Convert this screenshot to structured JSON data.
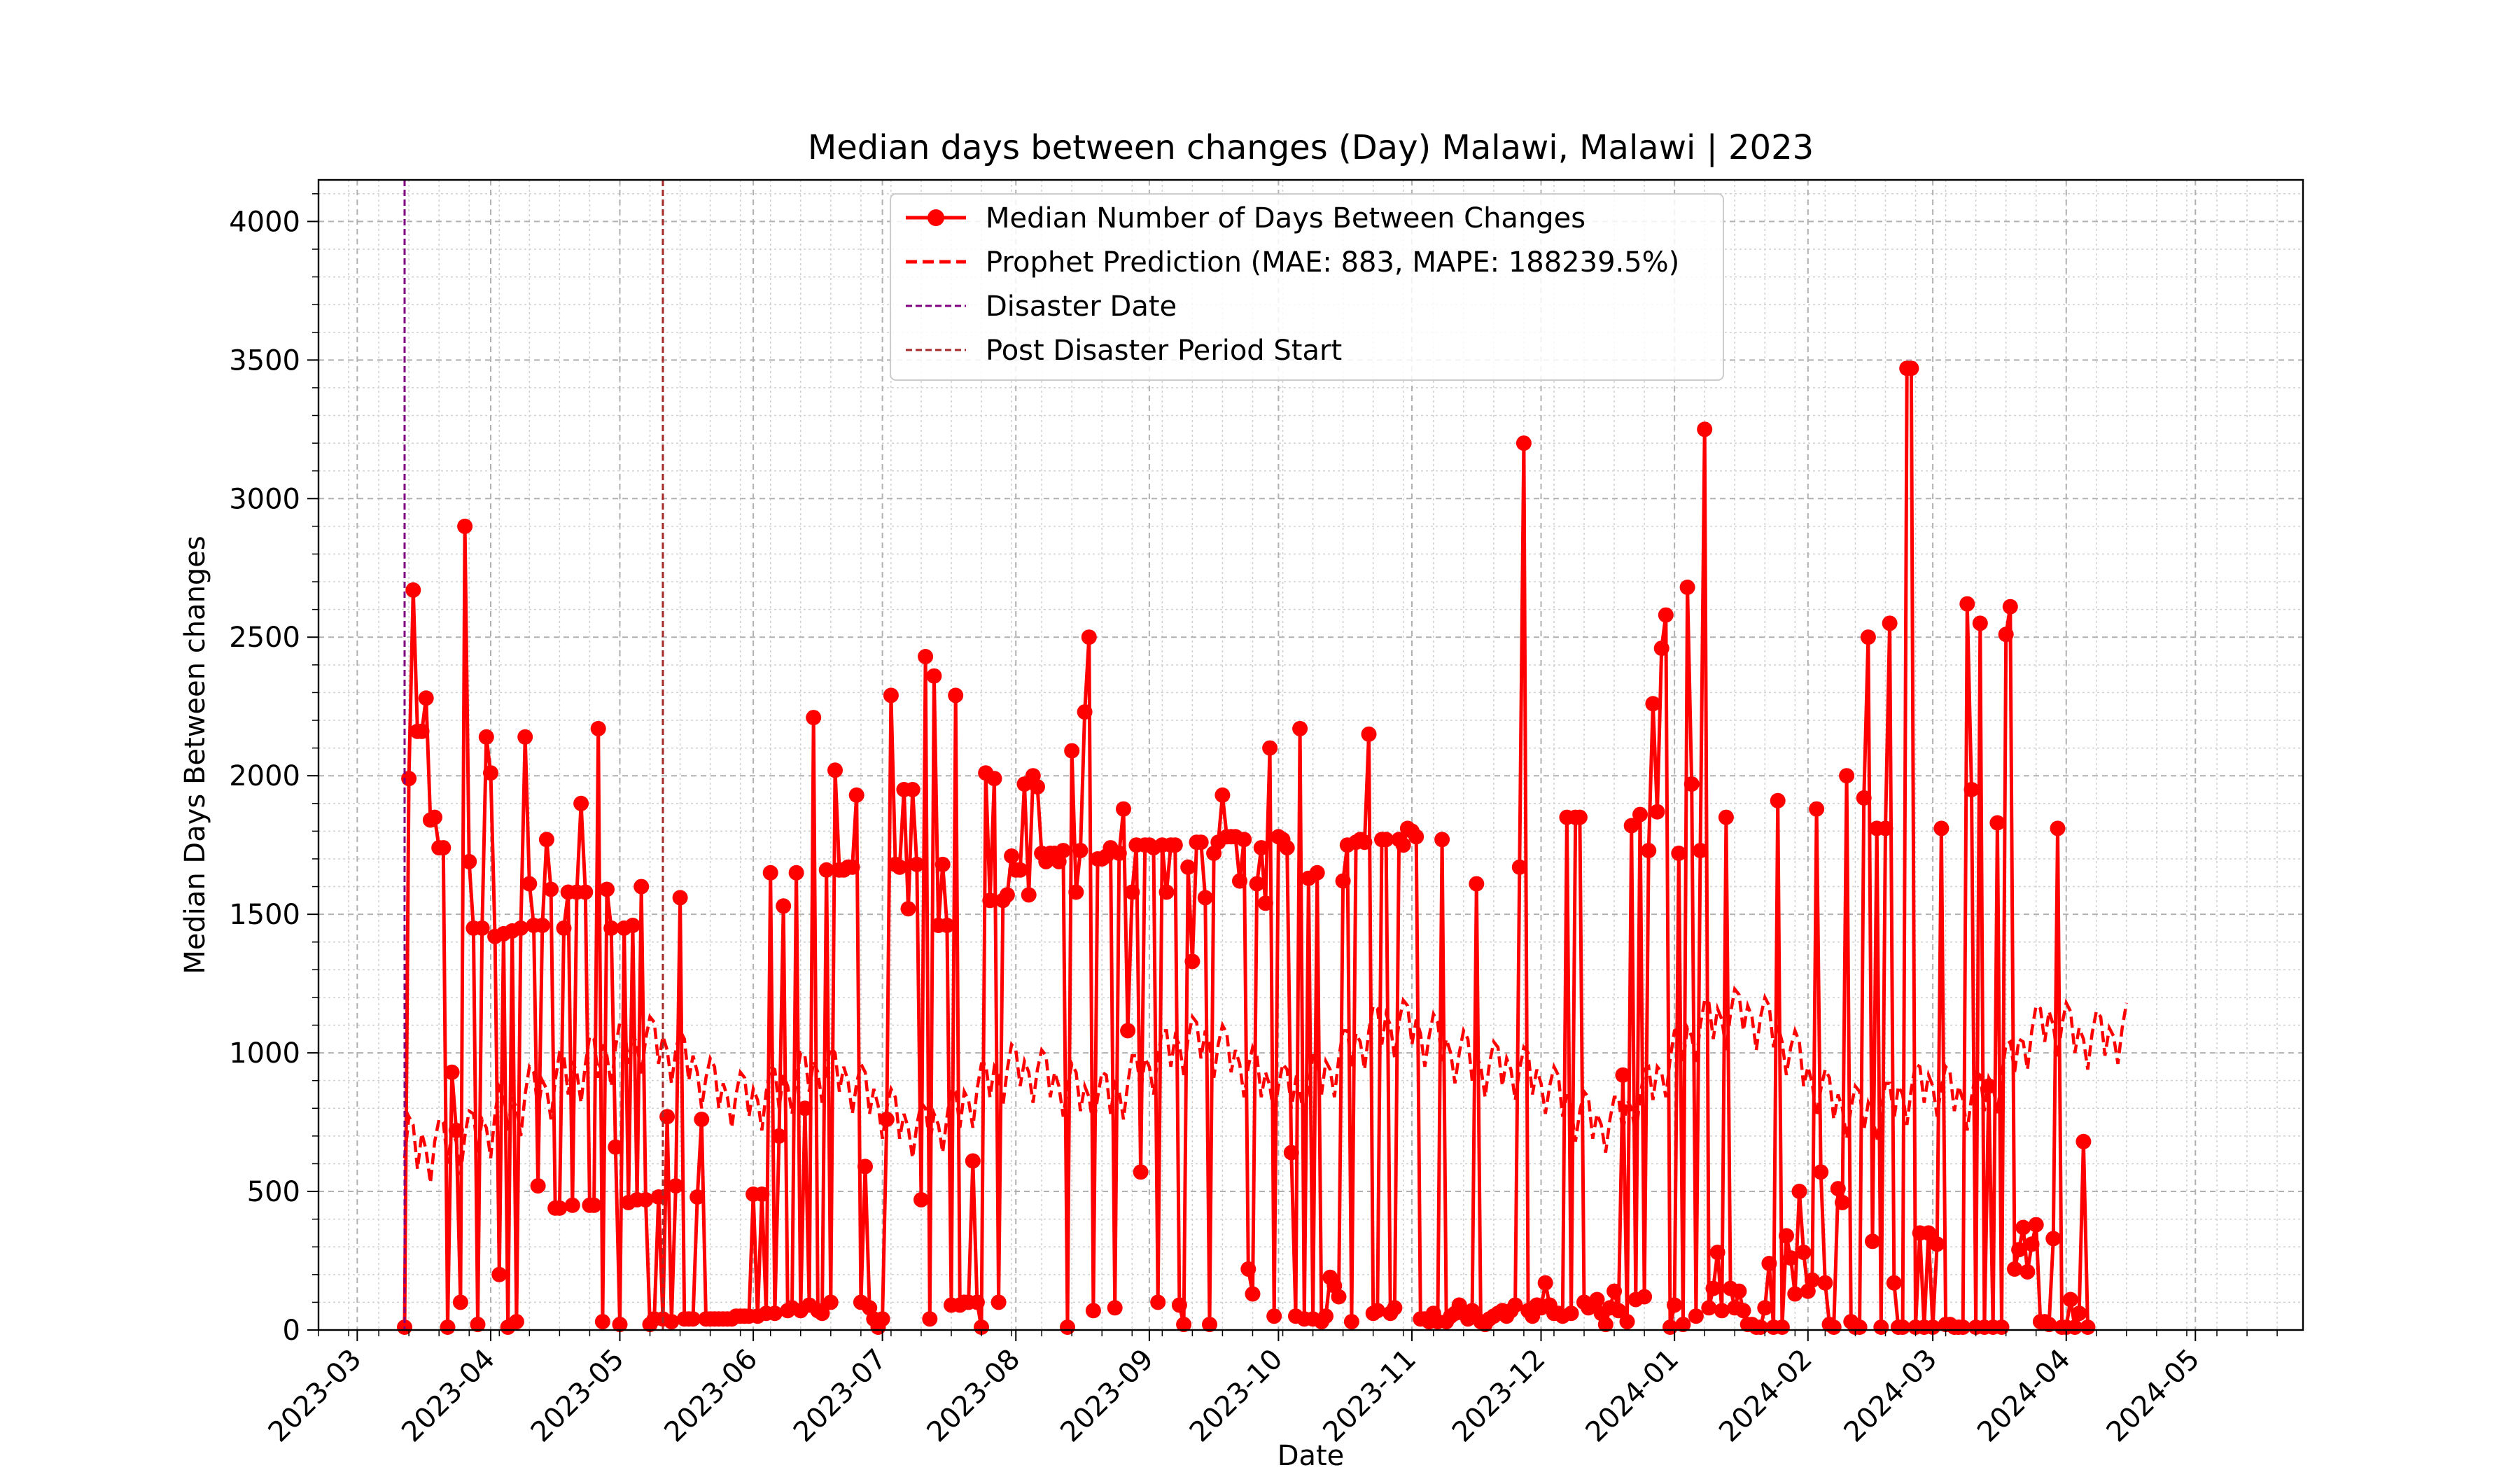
{
  "chart_data": {
    "type": "line",
    "title": "Median days between changes (Day) Malawi, Malawi | 2023",
    "xlabel": "Date",
    "ylabel": "Median Days Between changes",
    "xlim": [
      "2023-02-20",
      "2024-05-26"
    ],
    "ylim": [
      0,
      4150
    ],
    "yticks": [
      0,
      500,
      1000,
      1500,
      2000,
      2500,
      3000,
      3500,
      4000
    ],
    "xticks": [
      "2023-03-01",
      "2023-04-01",
      "2023-05-01",
      "2023-06-01",
      "2023-07-01",
      "2023-08-01",
      "2023-09-01",
      "2023-10-01",
      "2023-11-01",
      "2023-12-01",
      "2024-01-01",
      "2024-02-01",
      "2024-03-01",
      "2024-04-01",
      "2024-05-01"
    ],
    "xtick_labels": [
      "2023-03",
      "2023-04",
      "2023-05",
      "2023-06",
      "2023-07",
      "2023-08",
      "2023-09",
      "2023-10",
      "2023-11",
      "2023-12",
      "2024-01",
      "2024-02",
      "2024-03",
      "2024-04",
      "2024-05"
    ],
    "grid": true,
    "legend_position": "upper center",
    "series": [
      {
        "name": "Median Number of Days Between Changes",
        "style": "solid-marker",
        "color": "#ff0000",
        "start_date": "2023-03-12",
        "values": [
          10,
          1990,
          2670,
          2160,
          2160,
          2280,
          1840,
          1850,
          1740,
          1740,
          10,
          930,
          720,
          100,
          2900,
          1690,
          1450,
          20,
          1450,
          2140,
          2010,
          1420,
          200,
          1430,
          10,
          1440,
          30,
          1450,
          2140,
          1610,
          1460,
          520,
          1460,
          1770,
          1590,
          440,
          440,
          1450,
          1580,
          450,
          1580,
          1900,
          1580,
          450,
          450,
          2170,
          30,
          1590,
          1450,
          660,
          20,
          1450,
          460,
          1460,
          470,
          1600,
          470,
          20,
          40,
          480,
          40,
          770,
          30,
          520,
          1560,
          40,
          40,
          40,
          480,
          760,
          40,
          40,
          40,
          40,
          40,
          40,
          40,
          50,
          50,
          50,
          50,
          490,
          50,
          490,
          60,
          1650,
          60,
          700,
          1530,
          70,
          80,
          1650,
          70,
          800,
          90,
          2210,
          70,
          60,
          1660,
          100,
          2020,
          1660,
          1660,
          1670,
          1670,
          1930,
          100,
          590,
          80,
          40,
          10,
          40,
          760,
          2290,
          1680,
          1670,
          1950,
          1520,
          1950,
          1680,
          470,
          2430,
          40,
          2360,
          1460,
          1680,
          1460,
          90,
          2290,
          90,
          100,
          100,
          610,
          100,
          10,
          2010,
          1550,
          1990,
          100,
          1550,
          1570,
          1710,
          1660,
          1660,
          1970,
          1570,
          2000,
          1960,
          1720,
          1690,
          1720,
          1720,
          1690,
          1730,
          10,
          2090,
          1580,
          1730,
          2230,
          2500,
          70,
          1700,
          1700,
          1710,
          1740,
          80,
          1720,
          1880,
          1080,
          1580,
          1750,
          570,
          1750,
          1750,
          1740,
          100,
          1750,
          1580,
          1750,
          1750,
          90,
          20,
          1670,
          1330,
          1760,
          1760,
          1560,
          20,
          1720,
          1760,
          1930,
          1780,
          1780,
          1780,
          1620,
          1770,
          220,
          130,
          1610,
          1740,
          1540,
          2100,
          50,
          1780,
          1770,
          1740,
          640,
          50,
          2170,
          40,
          1630,
          40,
          1650,
          30,
          50,
          190,
          160,
          120,
          1620,
          1750,
          30,
          1760,
          1770,
          1760,
          2150,
          60,
          70,
          1770,
          1770,
          60,
          80,
          1770,
          1750,
          1810,
          1800,
          1780,
          40,
          40,
          30,
          60,
          30,
          1770,
          30,
          50,
          60,
          90,
          60,
          40,
          70,
          1610,
          30,
          20,
          40,
          50,
          60,
          70,
          50,
          70,
          90,
          1670,
          3200,
          70,
          50,
          90,
          80,
          170,
          90,
          60,
          60,
          50,
          1850,
          60,
          1850,
          1850,
          100,
          80,
          90,
          110,
          60,
          20,
          80,
          140,
          70,
          920,
          30,
          1820,
          110,
          1860,
          120,
          1730,
          2260,
          1870,
          2460,
          2580,
          10,
          90,
          1720,
          20,
          2680,
          1970,
          50,
          1730,
          3250,
          80,
          150,
          280,
          70,
          1850,
          150,
          80,
          140,
          70,
          20,
          20,
          10,
          10,
          80,
          240,
          10,
          1910,
          10,
          340,
          260,
          130,
          500,
          280,
          140,
          180,
          1880,
          570,
          170,
          20,
          10,
          510,
          460,
          2000,
          30,
          10,
          10,
          1920,
          2500,
          320,
          1810,
          10,
          1810,
          2550,
          170,
          10,
          10,
          3470,
          3470,
          10,
          350,
          10,
          350,
          10,
          310,
          1810,
          20,
          20,
          10,
          10,
          10,
          2620,
          1950,
          10,
          2550,
          10,
          880,
          10,
          1830,
          10,
          2510,
          2610,
          220,
          290,
          370,
          210,
          310,
          380,
          30,
          30,
          20,
          330,
          1810,
          10,
          10,
          110,
          10,
          60,
          680,
          10
        ]
      },
      {
        "name": "Prophet Prediction (MAE: 883, MAPE: 188239.5%)",
        "style": "dashed",
        "color": "#ff0000",
        "start_date": "2023-03-12",
        "values": [
          620,
          770,
          740,
          580,
          710,
          650,
          530,
          680,
          760,
          750,
          600,
          720,
          680,
          560,
          700,
          790,
          780,
          640,
          760,
          730,
          620,
          780,
          880,
          860,
          720,
          840,
          800,
          700,
          850,
          950,
          930,
          790,
          900,
          870,
          760,
          900,
          1000,
          990,
          850,
          970,
          930,
          820,
          960,
          1060,
          1050,
          910,
          1030,
          990,
          880,
          1020,
          1110,
          1100,
          960,
          1070,
          1030,
          920,
          1050,
          1130,
          1110,
          960,
          1060,
          1010,
          890,
          1010,
          1080,
          1050,
          900,
          990,
          930,
          800,
          910,
          980,
          950,
          800,
          890,
          840,
          730,
          850,
          930,
          910,
          770,
          870,
          830,
          720,
          860,
          950,
          940,
          800,
          920,
          880,
          780,
          910,
          1000,
          990,
          860,
          970,
          930,
          820,
          950,
          1020,
          1000,
          860,
          950,
          900,
          780,
          890,
          960,
          930,
          780,
          870,
          810,
          690,
          800,
          870,
          840,
          690,
          780,
          730,
          620,
          740,
          820,
          800,
          670,
          780,
          740,
          640,
          770,
          870,
          860,
          730,
          860,
          830,
          730,
          870,
          960,
          960,
          840,
          950,
          920,
          810,
          940,
          1030,
          1010,
          880,
          970,
          930,
          820,
          940,
          1010,
          990,
          840,
          930,
          880,
          770,
          880,
          960,
          930,
          790,
          880,
          840,
          730,
          840,
          930,
          920,
          780,
          890,
          860,
          760,
          890,
          990,
          990,
          860,
          980,
          950,
          850,
          990,
          1080,
          1080,
          950,
          1060,
          1030,
          920,
          1050,
          1130,
          1110,
          980,
          1080,
          1030,
          910,
          1030,
          1100,
          1070,
          930,
          1010,
          960,
          840,
          950,
          1020,
          990,
          840,
          930,
          880,
          770,
          880,
          960,
          940,
          800,
          900,
          860,
          760,
          890,
          990,
          990,
          850,
          970,
          940,
          840,
          980,
          1080,
          1080,
          950,
          1070,
          1040,
          940,
          1080,
          1170,
          1160,
          1030,
          1140,
          1100,
          980,
          1110,
          1190,
          1170,
          1030,
          1120,
          1070,
          950,
          1060,
          1140,
          1110,
          970,
          1050,
          1000,
          890,
          1000,
          1080,
          1050,
          900,
          990,
          950,
          840,
          960,
          1040,
          1020,
          880,
          980,
          940,
          830,
          940,
          1020,
          1000,
          850,
          940,
          890,
          780,
          880,
          950,
          920,
          770,
          850,
          800,
          680,
          790,
          860,
          840,
          690,
          780,
          740,
          640,
          760,
          840,
          840,
          710,
          830,
          800,
          700,
          840,
          940,
          950,
          830,
          950,
          930,
          840,
          980,
          1080,
          1090,
          970,
          1090,
          1060,
          960,
          1100,
          1190,
          1180,
          1050,
          1160,
          1120,
          1010,
          1140,
          1230,
          1210,
          1080,
          1170,
          1130,
          1010,
          1130,
          1200,
          1170,
          1020,
          1100,
          1040,
          920,
          1020,
          1080,
          1040,
          880,
          950,
          890,
          770,
          870,
          940,
          910,
          760,
          850,
          800,
          690,
          800,
          880,
          860,
          720,
          820,
          780,
          680,
          800,
          890,
          890,
          760,
          880,
          850,
          740,
          870,
          960,
          950,
          820,
          920,
          880,
          770,
          880,
          950,
          930,
          790,
          880,
          830,
          720,
          840,
          930,
          920,
          790,
          910,
          880,
          780,
          920,
          1030,
          1040,
          930,
          1050,
          1040,
          940,
          1080,
          1170,
          1160,
          1040,
          1150,
          1100,
          980,
          1100,
          1180,
          1150,
          1000,
          1090,
          1050,
          940,
          1070,
          1150,
          1130,
          990,
          1090,
          1060,
          960,
          1090,
          1180
        ]
      },
      {
        "name": "Disaster Date",
        "style": "vline",
        "color": "#800080",
        "x": "2023-03-12"
      },
      {
        "name": "Post Disaster Period Start",
        "style": "vline",
        "color": "#a52a2a",
        "x": "2023-05-11"
      }
    ]
  }
}
